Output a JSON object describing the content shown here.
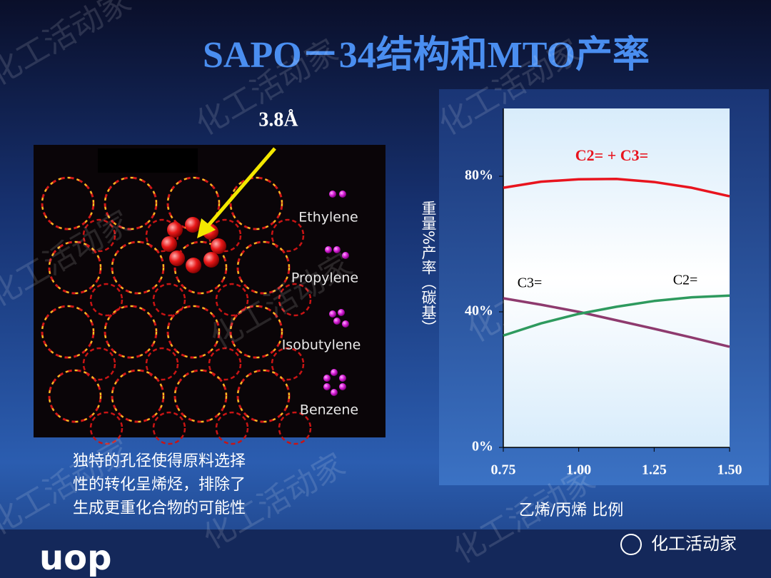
{
  "title": "SAPO－34结构和MTO产率",
  "pore_label": "3.8Å",
  "molecules": [
    "Ethylene",
    "Propylene",
    "Isobutylene",
    "Benzene"
  ],
  "description": [
    "独特的孔径使得原料选择",
    "性的转化呈烯烃，排除了",
    "生成更重化合物的可能性"
  ],
  "logo": "uop",
  "brand": "化工活动家",
  "chart_data": {
    "type": "line",
    "x_label": "乙烯/丙烯 比例",
    "y_label": "重量%产率（碳基）",
    "x": [
      0.75,
      0.875,
      1.0,
      1.125,
      1.25,
      1.375,
      1.5
    ],
    "xlim": [
      0.75,
      1.5
    ],
    "xticks": [
      {
        "value": 0.75,
        "label": "0.75"
      },
      {
        "value": 1,
        "label": "1.00"
      },
      {
        "value": 1.25,
        "label": "1.25"
      },
      {
        "value": 1.5,
        "label": "1.50"
      }
    ],
    "ylim": [
      0,
      100
    ],
    "yticks": [
      {
        "value": 0,
        "label": "0%"
      },
      {
        "value": 40,
        "label": "40%"
      },
      {
        "value": 80,
        "label": "80%"
      }
    ],
    "series": [
      {
        "name": "C2= + C3=",
        "color": "#e8141e",
        "values": [
          76.6,
          78.4,
          79.1,
          79.2,
          78.3,
          76.6,
          74.1
        ]
      },
      {
        "name": "C3=",
        "color": "#8e3a6e",
        "values": [
          44,
          42.1,
          40,
          37.5,
          35,
          32.4,
          29.7
        ]
      },
      {
        "name": "C2=",
        "color": "#2e9a5e",
        "values": [
          33,
          36.6,
          39.4,
          41.5,
          43.2,
          44.3,
          44.8
        ]
      }
    ]
  }
}
